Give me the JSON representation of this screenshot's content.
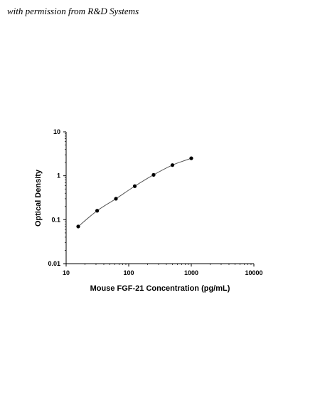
{
  "credit": "with permission from R&D Systems",
  "chart_data": {
    "type": "scatter",
    "xlabel": "Mouse FGF-21 Concentration (pg/mL)",
    "ylabel": "Optical Density",
    "xscale": "log",
    "yscale": "log",
    "xlim": [
      10,
      10000
    ],
    "ylim": [
      0.01,
      10
    ],
    "x_ticks": [
      "10",
      "100",
      "1000",
      "10000"
    ],
    "y_ticks": [
      "0.01",
      "0.1",
      "1",
      "10"
    ],
    "grid": false,
    "series": [
      {
        "points": [
          {
            "x": 15.6,
            "y": 0.07
          },
          {
            "x": 31.3,
            "y": 0.16
          },
          {
            "x": 62.5,
            "y": 0.3
          },
          {
            "x": 125,
            "y": 0.58
          },
          {
            "x": 250,
            "y": 1.05
          },
          {
            "x": 500,
            "y": 1.75
          },
          {
            "x": 1000,
            "y": 2.5
          }
        ],
        "fit_curve": true,
        "color": "#000000"
      }
    ]
  }
}
